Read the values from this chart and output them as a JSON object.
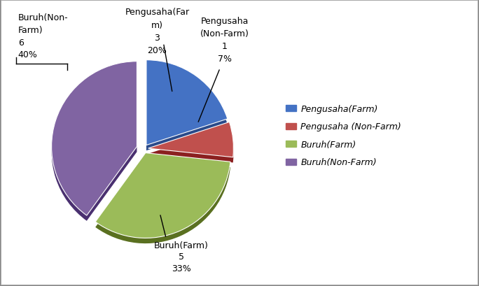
{
  "labels": [
    "Pengusaha(Farm)",
    "Pengusaha (Non-Farm)",
    "Buruh(Farm)",
    "Buruh(Non-Farm)"
  ],
  "values": [
    3,
    1,
    5,
    6
  ],
  "percentages": [
    "20%",
    "7%",
    "33%",
    "40%"
  ],
  "counts": [
    "3",
    "1",
    "5",
    "6"
  ],
  "colors": [
    "#4472C4",
    "#C0504D",
    "#9BBB59",
    "#8064A2"
  ],
  "shadow_colors": [
    "#2A4A8A",
    "#8B2020",
    "#5A7020",
    "#4A3070"
  ],
  "explode": [
    0.05,
    0.05,
    0.05,
    0.08
  ],
  "legend_labels": [
    "Pengusaha(Farm)",
    "Pengusaha (Non-Farm)",
    "Buruh(Farm)",
    "Buruh(Non-Farm)"
  ],
  "background_color": "#FFFFFF",
  "annotation_fontsize": 9,
  "legend_fontsize": 9,
  "border_color": "#AAAAAA"
}
